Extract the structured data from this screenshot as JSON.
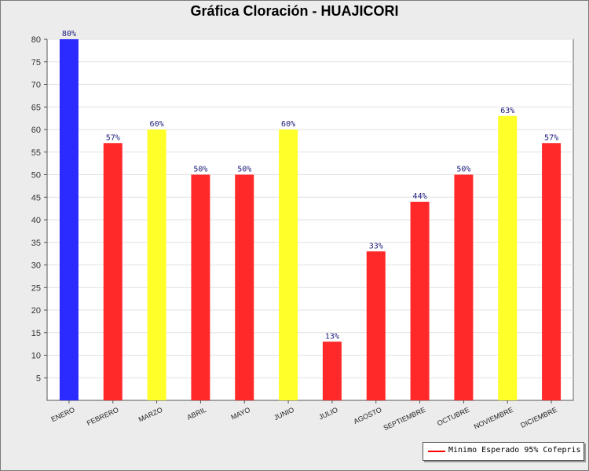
{
  "chart_data": {
    "type": "bar",
    "title": "Gráfica Cloración - HUAJICORI",
    "categories": [
      "ENERO",
      "FEBRERO",
      "MARZO",
      "ABRIL",
      "MAYO",
      "JUNIO",
      "JULIO",
      "AGOSTO",
      "SEPTIEMBRE",
      "OCTUBRE",
      "NOVIEMBRE",
      "DICIEMBRE"
    ],
    "values": [
      80,
      57,
      60,
      50,
      50,
      60,
      13,
      33,
      44,
      50,
      63,
      57
    ],
    "data_labels": [
      "80%",
      "57%",
      "60%",
      "50%",
      "50%",
      "60%",
      "13%",
      "33%",
      "44%",
      "50%",
      "63%",
      "57%"
    ],
    "bar_colors": [
      "#2b2bff",
      "#ff2929",
      "#ffff29",
      "#ff2929",
      "#ff2929",
      "#ffff29",
      "#ff2929",
      "#ff2929",
      "#ff2929",
      "#ff2929",
      "#ffff29",
      "#ff2929"
    ],
    "ylim": [
      0,
      80
    ],
    "yticks": [
      5,
      10,
      15,
      20,
      25,
      30,
      35,
      40,
      45,
      50,
      55,
      60,
      65,
      70,
      75,
      80
    ],
    "grid": true,
    "legend": {
      "position": "bottom-right",
      "entries": [
        {
          "label": "Minimo Esperado 95% Cofepris",
          "color": "#ff0000",
          "style": "line"
        }
      ]
    }
  }
}
